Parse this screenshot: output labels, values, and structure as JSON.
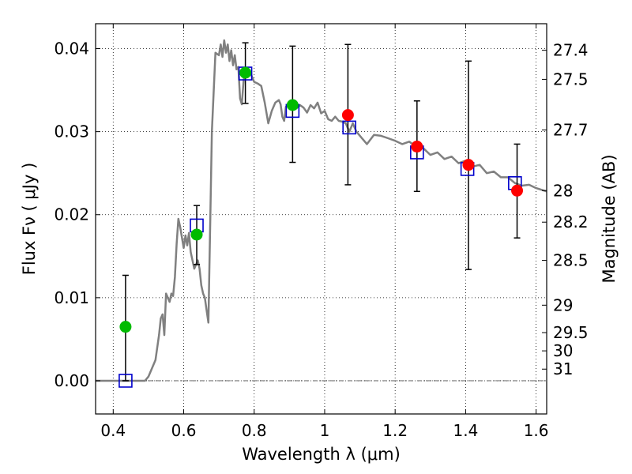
{
  "chart_data": {
    "type": "scatter",
    "xlabel": "Wavelength  λ (μm)",
    "ylabel": "Flux  Fν  ( μJy )",
    "ylabel_right": "Magnitude (AB)",
    "xlim": [
      0.35,
      1.63
    ],
    "ylim": [
      -0.004,
      0.043
    ],
    "grid": true,
    "legend": "none",
    "x_ticks": [
      0.4,
      0.6,
      0.8,
      1.0,
      1.2,
      1.4,
      1.6
    ],
    "x_tick_labels": [
      "0.4",
      "0.6",
      "0.8",
      "1",
      "1.2",
      "1.4",
      "1.6"
    ],
    "y_ticks": [
      0.0,
      0.01,
      0.02,
      0.03,
      0.04
    ],
    "y_tick_labels": [
      "0.00",
      "0.01",
      "0.02",
      "0.03",
      "0.04"
    ],
    "right_ticks": [
      {
        "label": "27.4",
        "flux": 0.0398
      },
      {
        "label": "27.5",
        "flux": 0.0363
      },
      {
        "label": "27.7",
        "flux": 0.0302
      },
      {
        "label": "28",
        "flux": 0.0229
      },
      {
        "label": "28.2",
        "flux": 0.0191
      },
      {
        "label": "28.5",
        "flux": 0.0145
      },
      {
        "label": "29",
        "flux": 0.0091
      },
      {
        "label": "29.5",
        "flux": 0.0058
      },
      {
        "label": "30",
        "flux": 0.0036
      },
      {
        "label": "31",
        "flux": 0.0014
      }
    ],
    "colors": {
      "model_line": "#808080",
      "green_points": "#00bb00",
      "red_points": "#ff0000",
      "model_squares": "#0000cc",
      "errorbar": "#000000",
      "zero_line": "#555555"
    },
    "series": [
      {
        "kind": "line",
        "x": [
          0.35,
          0.49,
          0.5,
          0.52,
          0.53,
          0.535,
          0.54,
          0.545,
          0.55,
          0.56,
          0.565,
          0.57,
          0.575,
          0.58,
          0.585,
          0.59,
          0.6,
          0.605,
          0.61,
          0.615,
          0.62,
          0.63,
          0.64,
          0.645,
          0.65,
          0.655,
          0.66,
          0.665,
          0.67,
          0.68,
          0.69,
          0.7,
          0.705,
          0.71,
          0.715,
          0.72,
          0.725,
          0.73,
          0.735,
          0.74,
          0.745,
          0.75,
          0.755,
          0.76,
          0.765,
          0.77,
          0.775,
          0.78,
          0.79,
          0.8,
          0.81,
          0.82,
          0.83,
          0.84,
          0.85,
          0.86,
          0.87,
          0.875,
          0.88,
          0.885,
          0.89,
          0.9,
          0.91,
          0.92,
          0.93,
          0.94,
          0.95,
          0.96,
          0.97,
          0.98,
          0.99,
          1.0,
          1.01,
          1.02,
          1.03,
          1.04,
          1.05,
          1.06,
          1.07,
          1.08,
          1.09,
          1.1,
          1.12,
          1.14,
          1.16,
          1.18,
          1.2,
          1.22,
          1.24,
          1.26,
          1.28,
          1.3,
          1.32,
          1.34,
          1.36,
          1.38,
          1.4,
          1.42,
          1.44,
          1.46,
          1.48,
          1.5,
          1.52,
          1.54,
          1.56,
          1.58,
          1.6,
          1.63
        ],
        "y": [
          0.0,
          0.0,
          0.0005,
          0.0025,
          0.0055,
          0.0075,
          0.008,
          0.0055,
          0.0105,
          0.0095,
          0.0105,
          0.0102,
          0.0125,
          0.0165,
          0.0195,
          0.0185,
          0.016,
          0.0175,
          0.0163,
          0.0178,
          0.0155,
          0.0135,
          0.0145,
          0.0135,
          0.0115,
          0.0105,
          0.01,
          0.0085,
          0.007,
          0.03,
          0.0395,
          0.0392,
          0.0405,
          0.039,
          0.041,
          0.0395,
          0.0405,
          0.0385,
          0.0398,
          0.038,
          0.0392,
          0.0375,
          0.0378,
          0.034,
          0.0333,
          0.0362,
          0.0375,
          0.0368,
          0.037,
          0.036,
          0.0358,
          0.0355,
          0.0335,
          0.031,
          0.0325,
          0.0335,
          0.0338,
          0.0333,
          0.0318,
          0.0313,
          0.033,
          0.0333,
          0.0333,
          0.0328,
          0.0332,
          0.0329,
          0.0323,
          0.0332,
          0.0328,
          0.0335,
          0.0322,
          0.0325,
          0.0315,
          0.0313,
          0.0318,
          0.0313,
          0.0312,
          0.031,
          0.03,
          0.031,
          0.03,
          0.0295,
          0.0285,
          0.0296,
          0.0295,
          0.0292,
          0.0289,
          0.0285,
          0.0288,
          0.0282,
          0.028,
          0.0272,
          0.0275,
          0.0267,
          0.027,
          0.0262,
          0.0265,
          0.0258,
          0.026,
          0.025,
          0.0252,
          0.0245,
          0.0245,
          0.0238,
          0.0235,
          0.0236,
          0.0232,
          0.0228
        ]
      },
      {
        "kind": "squares",
        "x": [
          0.435,
          0.637,
          0.775,
          0.909,
          1.07,
          1.262,
          1.405,
          1.54
        ],
        "y": [
          0.0,
          0.0187,
          0.037,
          0.0325,
          0.0305,
          0.0275,
          0.0255,
          0.0238
        ]
      },
      {
        "kind": "points",
        "x": [
          0.435,
          0.637,
          0.775,
          0.909,
          1.066,
          1.262,
          1.408,
          1.546
        ],
        "y": [
          0.0065,
          0.0176,
          0.0371,
          0.0332,
          0.032,
          0.0282,
          0.026,
          0.0229
        ],
        "yerr_low": [
          0.0065,
          0.0036,
          0.0037,
          0.0069,
          0.0084,
          0.0054,
          0.0126,
          0.0057
        ],
        "yerr_high": [
          0.0062,
          0.0035,
          0.0036,
          0.0071,
          0.0085,
          0.0055,
          0.0125,
          0.0056
        ],
        "color_keys": [
          "green",
          "green",
          "green",
          "green",
          "red",
          "red",
          "red",
          "red"
        ]
      }
    ]
  }
}
